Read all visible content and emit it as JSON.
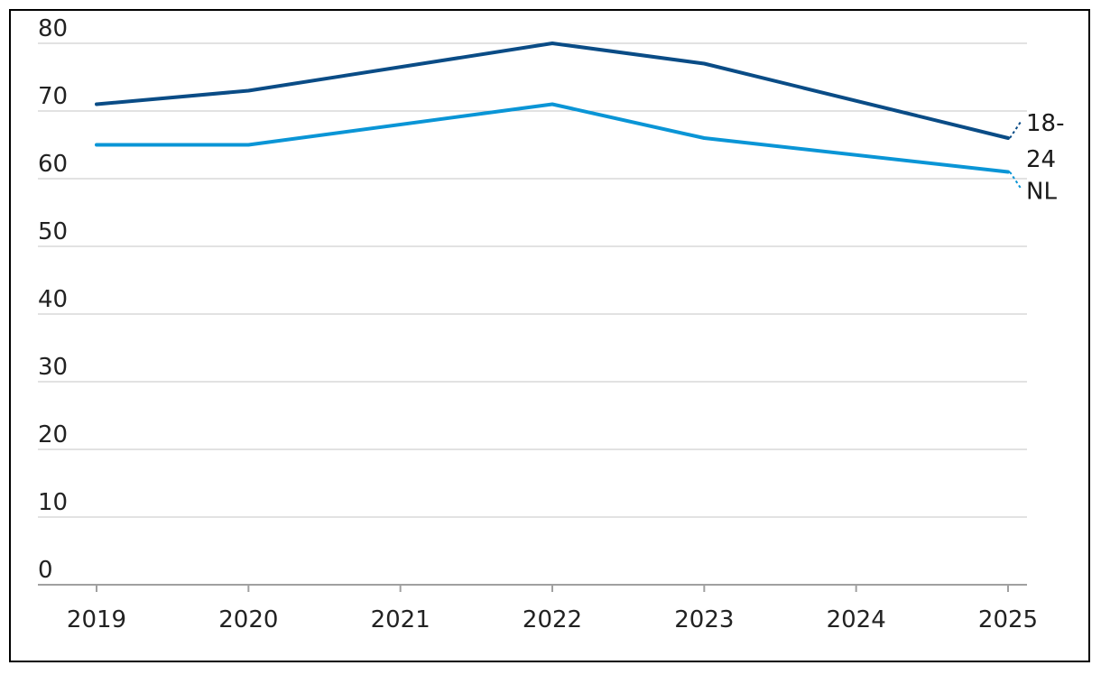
{
  "chart_data": {
    "type": "line",
    "title": "",
    "xlabel": "",
    "ylabel": "",
    "x": [
      "2019",
      "2020",
      "2021",
      "2022",
      "2023",
      "2024",
      "2025"
    ],
    "ylim": [
      0,
      80
    ],
    "yticks": [
      "0",
      "10",
      "20",
      "30",
      "40",
      "50",
      "60",
      "70",
      "80"
    ],
    "grid": true,
    "series": [
      {
        "name": "18-24",
        "label_lines": [
          "18-",
          "24"
        ],
        "color": "#0a4c86",
        "points": [
          [
            2019,
            71
          ],
          [
            2020,
            73
          ],
          [
            2022,
            80
          ],
          [
            2023,
            77
          ],
          [
            2025,
            66
          ]
        ]
      },
      {
        "name": "NL",
        "label_lines": [
          "NL"
        ],
        "color": "#0a95d6",
        "points": [
          [
            2019,
            65
          ],
          [
            2020,
            65
          ],
          [
            2022,
            71
          ],
          [
            2023,
            66
          ],
          [
            2025,
            61
          ]
        ]
      }
    ]
  }
}
